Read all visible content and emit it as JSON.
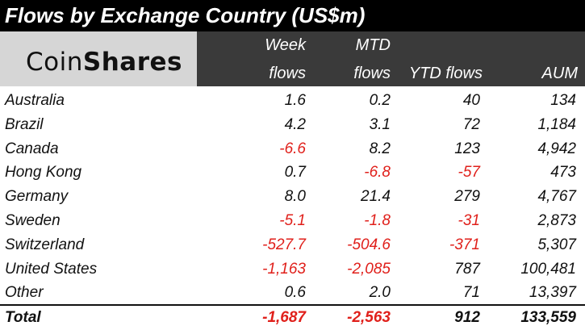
{
  "title": "Flows by Exchange Country (US$m)",
  "logo": {
    "part1": "Coin",
    "part2": "Shares"
  },
  "columns": {
    "week_line1": "Week",
    "week_line2": "flows",
    "mtd_line1": "MTD",
    "mtd_line2": "flows",
    "ytd": "YTD flows",
    "aum": "AUM"
  },
  "colors": {
    "negative": "#e0201b",
    "header_bg": "#3a3a3a",
    "title_bg": "#000000"
  },
  "chart_data": {
    "type": "table",
    "title": "Flows by Exchange Country (US$m)",
    "columns": [
      "Week flows",
      "MTD flows",
      "YTD flows",
      "AUM"
    ],
    "rows": [
      {
        "name": "Australia",
        "week": "1.6",
        "mtd": "0.2",
        "ytd": "40",
        "aum": "134"
      },
      {
        "name": "Brazil",
        "week": "4.2",
        "mtd": "3.1",
        "ytd": "72",
        "aum": "1,184"
      },
      {
        "name": "Canada",
        "week": "-6.6",
        "mtd": "8.2",
        "ytd": "123",
        "aum": "4,942"
      },
      {
        "name": "Hong Kong",
        "week": "0.7",
        "mtd": "-6.8",
        "ytd": "-57",
        "aum": "473"
      },
      {
        "name": "Germany",
        "week": "8.0",
        "mtd": "21.4",
        "ytd": "279",
        "aum": "4,767"
      },
      {
        "name": "Sweden",
        "week": "-5.1",
        "mtd": "-1.8",
        "ytd": "-31",
        "aum": "2,873"
      },
      {
        "name": "Switzerland",
        "week": "-527.7",
        "mtd": "-504.6",
        "ytd": "-371",
        "aum": "5,307"
      },
      {
        "name": "United States",
        "week": "-1,163",
        "mtd": "-2,085",
        "ytd": "787",
        "aum": "100,481"
      },
      {
        "name": "Other",
        "week": "0.6",
        "mtd": "2.0",
        "ytd": "71",
        "aum": "13,397"
      }
    ],
    "total": {
      "name": "Total",
      "week": "-1,687",
      "mtd": "-2,563",
      "ytd": "912",
      "aum": "133,559"
    }
  }
}
